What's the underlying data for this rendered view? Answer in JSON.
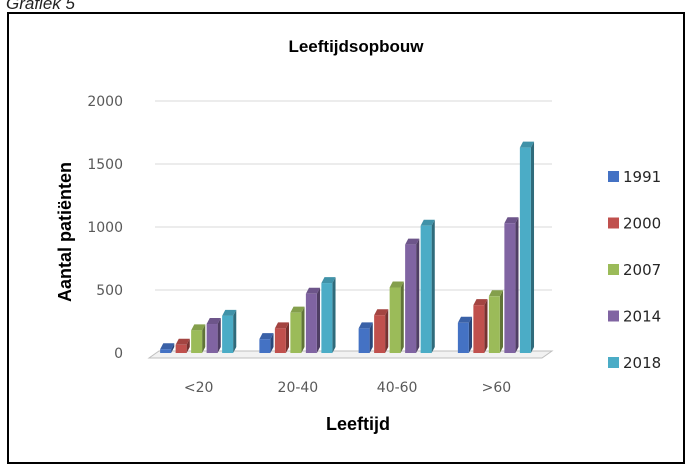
{
  "caption": "Grafiek 5",
  "chart_data": {
    "type": "bar",
    "title": "Leeftijdsopbouw",
    "xlabel": "Leeftijd",
    "ylabel": "Aantal patiënten",
    "categories": [
      "<20",
      "20-40",
      "40-60",
      ">60"
    ],
    "ylim": [
      0,
      2000
    ],
    "yticks": [
      0,
      500,
      1000,
      1500,
      2000
    ],
    "grid": true,
    "legend_position": "right",
    "series": [
      {
        "name": "1991",
        "color": "#4472c4",
        "values": [
          30,
          110,
          195,
          240
        ]
      },
      {
        "name": "2000",
        "color": "#c0504d",
        "values": [
          65,
          195,
          300,
          380
        ]
      },
      {
        "name": "2007",
        "color": "#9bbb59",
        "values": [
          180,
          320,
          520,
          450
        ]
      },
      {
        "name": "2014",
        "color": "#8064a2",
        "values": [
          230,
          470,
          860,
          1030
        ]
      },
      {
        "name": "2018",
        "color": "#4bacc6",
        "values": [
          295,
          555,
          1010,
          1630
        ]
      }
    ]
  }
}
